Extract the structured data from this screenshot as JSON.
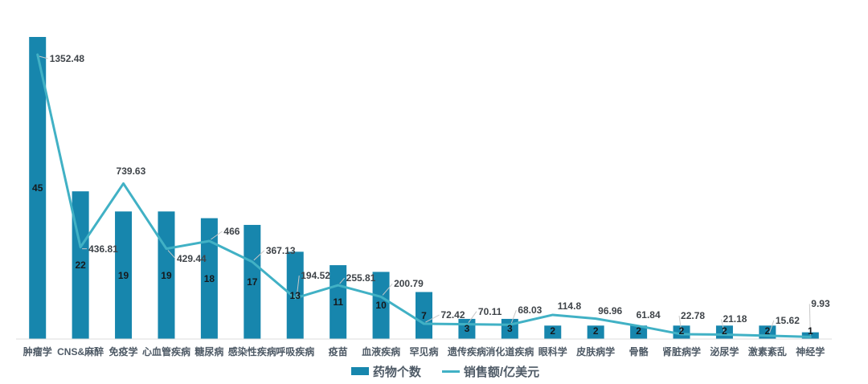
{
  "legend": {
    "bar_label": "药物个数",
    "line_label": "销售额/亿美元"
  },
  "colors": {
    "bar": "#1786ad",
    "line": "#41b1c5",
    "axis_line": "#dcdcdc",
    "leader_line": "#c8c8c8",
    "bar_value_text": "#16191c",
    "line_value_text": "#3f4449",
    "category_text": "#4e5a66",
    "background": "#ffffff"
  },
  "chart_data": {
    "type": "bar",
    "title": "",
    "xlabel": "",
    "ylabel": "",
    "grid": false,
    "legend_position": "bottom-center",
    "value_labels_visible": true,
    "categories": [
      "肿瘤学",
      "CNS&麻醉",
      "免疫学",
      "心血管疾病",
      "糖尿病",
      "感染性疾病",
      "呼吸疾病",
      "疫苗",
      "血液疾病",
      "罕见病",
      "遗传疾病",
      "消化道疾病",
      "眼科学",
      "皮肤病学",
      "骨骼",
      "肾脏病学",
      "泌尿学",
      "激素紊乱",
      "神经学"
    ],
    "series": [
      {
        "name": "药物个数",
        "type": "bar",
        "axis": "left",
        "axis_range": [
          0,
          48
        ],
        "values": [
          45,
          22,
          19,
          19,
          18,
          17,
          13,
          11,
          10,
          7,
          3,
          3,
          2,
          2,
          2,
          2,
          2,
          2,
          1
        ]
      },
      {
        "name": "销售额/亿美元",
        "type": "line",
        "axis": "right",
        "axis_range": [
          0,
          1450
        ],
        "values": [
          1352.48,
          436.81,
          739.63,
          429.44,
          466,
          367.13,
          194.52,
          255.81,
          200.79,
          72.42,
          70.11,
          68.03,
          114.8,
          96.96,
          61.84,
          22.78,
          21.18,
          15.62,
          9.93
        ]
      }
    ]
  }
}
